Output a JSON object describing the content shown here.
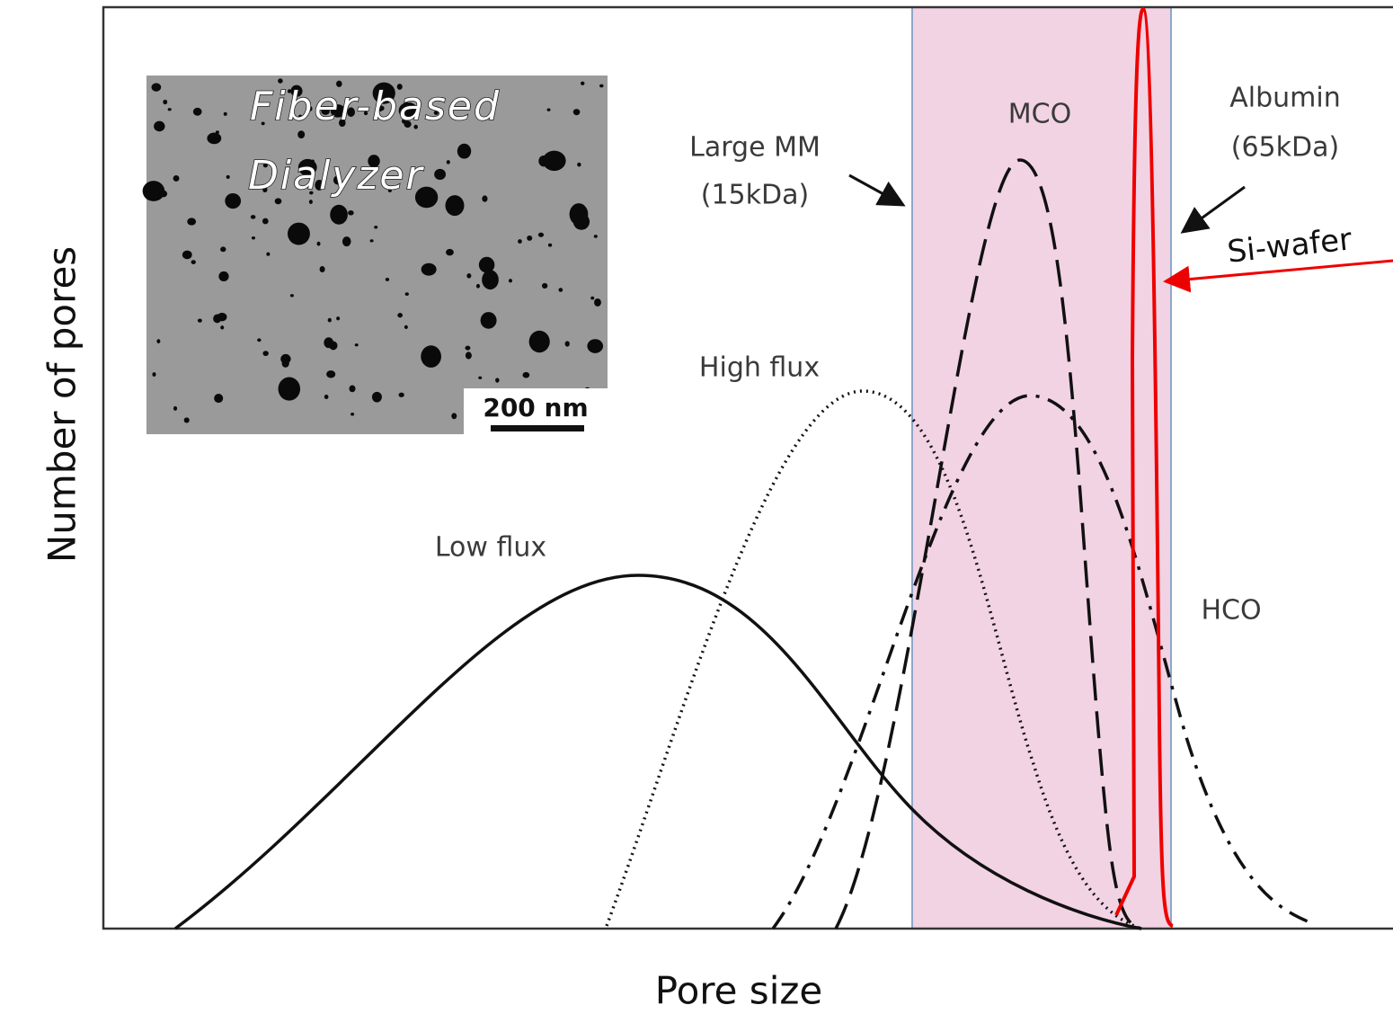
{
  "y_axis_label": "Number of pores",
  "x_axis_label": "Pore size",
  "inset": {
    "title_lines": [
      "Fiber-based",
      "Dialyzer"
    ],
    "scale_bar": "200 nm"
  },
  "curve_labels": {
    "low_flux": "Low flux",
    "high_flux": "High flux",
    "mco": "MCO",
    "hco": "HCO"
  },
  "annotations": {
    "large_mm": [
      "Large MM",
      "(15kDa)"
    ],
    "albumin": [
      "Albumin",
      "(65kDa)"
    ],
    "si_wafer": "Si-wafer"
  }
}
